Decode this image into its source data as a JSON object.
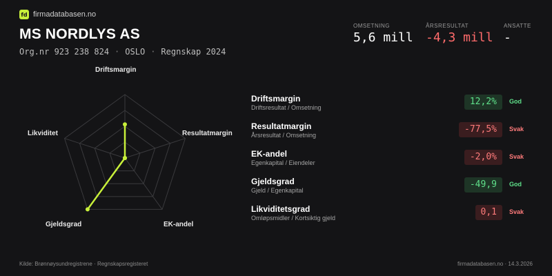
{
  "brand": {
    "logo_text": "fd",
    "name": "firmadatabasen.no"
  },
  "company": {
    "name": "MS NORDLYS AS",
    "orgnr": "Org.nr 923 238 824",
    "city": "OSLO",
    "report": "Regnskap 2024",
    "separator": "·"
  },
  "kpis": {
    "revenue": {
      "label": "OMSETNING",
      "value": "5,6 mill"
    },
    "result": {
      "label": "ÅRSRESULTAT",
      "value": "-4,3 mill"
    },
    "employees": {
      "label": "ANSATTE",
      "value": "-"
    }
  },
  "radar": {
    "axes": [
      "Driftsmargin",
      "Resultatmargin",
      "EK-andel",
      "Gjeldsgrad",
      "Likviditet"
    ],
    "levels": 4,
    "scores": [
      0.53,
      0.0,
      0.0,
      1.0,
      0.0
    ],
    "colors": {
      "grid": "#3a3a3d",
      "series": "#c8f03a"
    }
  },
  "metrics": [
    {
      "name": "Driftsmargin",
      "formula": "Driftsresultat / Omsetning",
      "value": "12,2%",
      "status": "God",
      "tone": "good"
    },
    {
      "name": "Resultatmargin",
      "formula": "Årsresultat / Omsetning",
      "value": "-77,5%",
      "status": "Svak",
      "tone": "bad"
    },
    {
      "name": "EK-andel",
      "formula": "Egenkapital / Eiendeler",
      "value": "-2,0%",
      "status": "Svak",
      "tone": "bad"
    },
    {
      "name": "Gjeldsgrad",
      "formula": "Gjeld / Egenkapital",
      "value": "-49,9",
      "status": "God",
      "tone": "good"
    },
    {
      "name": "Likviditetsgrad",
      "formula": "Omløpsmidler / Kortsiktig gjeld",
      "value": "0,1",
      "status": "Svak",
      "tone": "bad"
    }
  ],
  "footer": {
    "source": "Kilde: Brønnøysundregistrene · Regnskapsregisteret",
    "site_date": "firmadatabasen.no · 14.3.2026"
  }
}
